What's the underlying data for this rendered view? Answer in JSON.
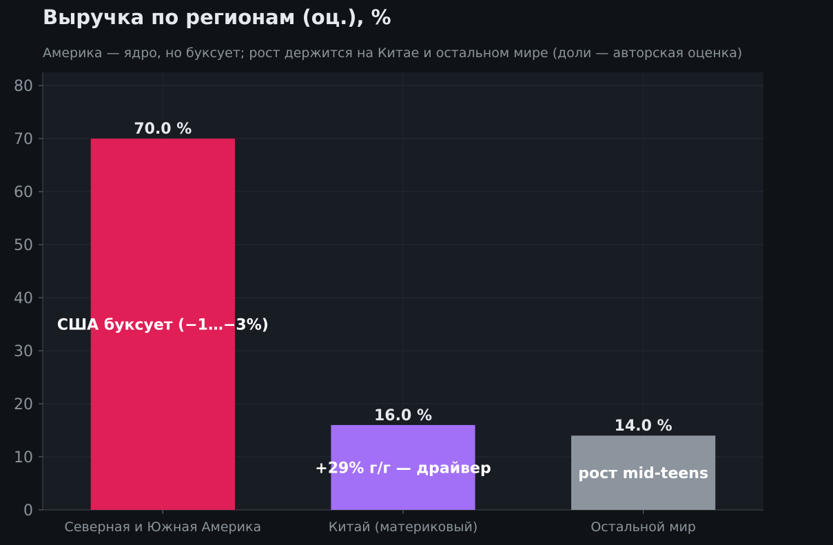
{
  "chart_data": {
    "type": "bar",
    "title": "Выручка по регионам (оц.), %",
    "subtitle": "Америка — ядро, но буксует; рост держится на Китае и остальном мире (доли — авторская оценка)",
    "xlabel": "",
    "ylabel": "",
    "categories": [
      "Северная и Южная Америка",
      "Китай (материковый)",
      "Остальной мир"
    ],
    "values": [
      70.0,
      16.0,
      14.0
    ],
    "value_labels": [
      "70.0 %",
      "16.0 %",
      "14.0 %"
    ],
    "annotations": [
      "США буксует (−1…−3%)",
      "+29% г/г — драйвер",
      "рост mid-teens"
    ],
    "colors": [
      "#e01f57",
      "#a270f7",
      "#8c949e"
    ],
    "ylim": [
      0,
      82.5
    ],
    "yticks": [
      0,
      10,
      20,
      30,
      40,
      50,
      60,
      70,
      80
    ],
    "grid": true,
    "legend": "none",
    "background": "#0f1317",
    "plot_background": "#181c23"
  }
}
